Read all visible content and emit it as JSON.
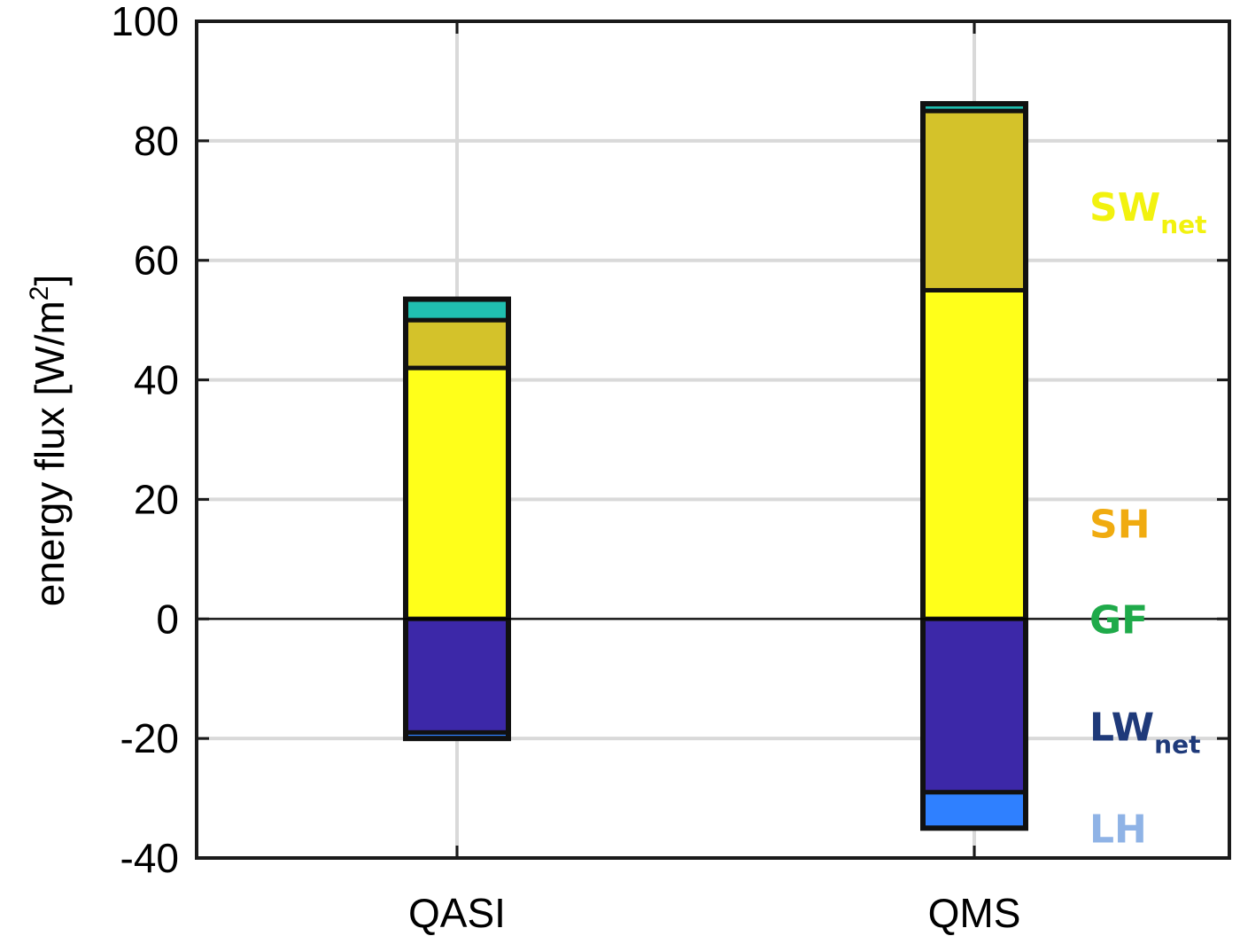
{
  "chart_data": {
    "type": "bar",
    "stacked": true,
    "categories": [
      "QASI",
      "QMS"
    ],
    "ylabel": "energy flux [W/m²]",
    "ylabel_main": "energy flux [W/m",
    "ylabel_sup": "2",
    "ylabel_end": "]",
    "ylim": [
      -40,
      100
    ],
    "yticks": [
      100,
      80,
      60,
      40,
      20,
      0,
      -20,
      -40
    ],
    "ytick_labels": [
      "100",
      "80",
      "60",
      "40",
      "20",
      "0",
      "-20",
      "-40"
    ],
    "grid": true,
    "series": [
      {
        "name": "SW",
        "subscript": "net",
        "color": "#ffff1a",
        "label_color": "#f2f20f",
        "values": [
          42,
          55
        ],
        "label_value": 69
      },
      {
        "name": "SH",
        "subscript": "",
        "color": "#d4c22a",
        "label_color": "#f0ab10",
        "values": [
          8,
          30
        ],
        "label_value": 16
      },
      {
        "name": "GF",
        "subscript": "",
        "color": "#20bfb0",
        "label_color": "#1faa4a",
        "values": [
          3.5,
          1.2
        ],
        "label_value": 0
      },
      {
        "name": "LW",
        "subscript": "net",
        "color": "#3c28a8",
        "label_color": "#1f3a7a",
        "values": [
          -19,
          -29
        ],
        "label_value": -18
      },
      {
        "name": "LH",
        "subscript": "",
        "color": "#2f80ff",
        "label_color": "#8fb3e6",
        "values": [
          -1,
          -6
        ],
        "label_value": -35
      }
    ]
  }
}
